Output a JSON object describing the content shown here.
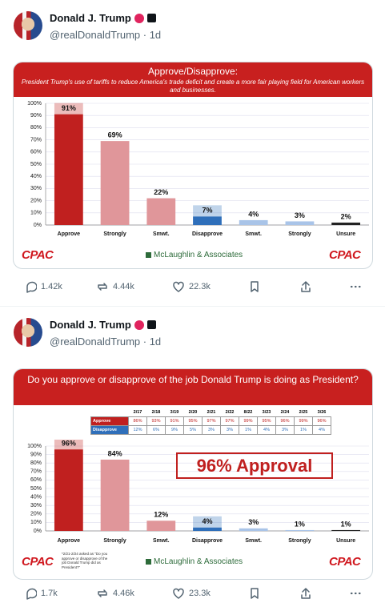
{
  "posts": [
    {
      "author": "Donald J. Trump",
      "handle_line": "@realDonaldTrump · 1d",
      "replies": "1.42k",
      "reposts": "4.44k",
      "likes": "22.3k",
      "chart_data": {
        "type": "bar",
        "title": "Approve/Disapprove:",
        "subtitle": "President Trump's use of tariffs to reduce America's trade deficit and create a more fair playing field for American workers and businesses.",
        "categories": [
          "Approve",
          "Strongly",
          "Smwt.",
          "Disapprove",
          "Smwt.",
          "Strongly",
          "Unsure"
        ],
        "values": [
          91,
          69,
          22,
          7,
          4,
          3,
          2
        ],
        "value_labels": [
          "91%",
          "69%",
          "22%",
          "7%",
          "4%",
          "3%",
          "2%"
        ],
        "colors": [
          "#c0201f",
          "#e0969a",
          "#e0969a",
          "#2f6fba",
          "#a9c4e8",
          "#a9c4e8",
          "#222222"
        ],
        "ylim": [
          0,
          100
        ],
        "yticks": [
          {
            "value": 0,
            "label": "0%"
          },
          {
            "value": 10,
            "label": "10%"
          },
          {
            "value": 20,
            "label": "20%"
          },
          {
            "value": 30,
            "label": "30%"
          },
          {
            "value": 40,
            "label": "40%"
          },
          {
            "value": 50,
            "label": "50%"
          },
          {
            "value": 60,
            "label": "60%"
          },
          {
            "value": 70,
            "label": "70%"
          },
          {
            "value": 80,
            "label": "80%"
          },
          {
            "value": 90,
            "label": "90%"
          },
          {
            "value": 100,
            "label": "100%"
          }
        ],
        "grid": true,
        "logo": "CPAC",
        "source": "McLaughlin & Associates"
      }
    },
    {
      "author": "Donald J. Trump",
      "handle_line": "@realDonaldTrump · 1d",
      "replies": "1.7k",
      "reposts": "4.46k",
      "likes": "23.3k",
      "chart_data": {
        "type": "bar",
        "title": "Do you approve or disapprove of the job Donald Trump is doing as President?",
        "table": {
          "header": [
            "2/17",
            "2/18",
            "3/19",
            "2/20",
            "2/21",
            "2/22",
            "8/22",
            "3/23",
            "2/24",
            "2/25",
            "3/26"
          ],
          "rows": [
            [
              "Approve",
              "86%",
              "93%",
              "91%",
              "95%",
              "97%",
              "97%",
              "99%",
              "95%",
              "96%",
              "99%",
              "96%"
            ],
            [
              "Disapprove",
              "12%",
              "6%",
              "9%",
              "5%",
              "3%",
              "3%",
              "1%",
              "4%",
              "3%",
              "1%",
              "4%"
            ]
          ]
        },
        "annotation": "96% Approval",
        "categories": [
          "Approve",
          "Strongly",
          "Smwt.",
          "Disapprove",
          "Smwt.",
          "Strongly",
          "Unsure"
        ],
        "values": [
          96,
          84,
          12,
          4,
          3,
          1,
          1
        ],
        "value_labels": [
          "96%",
          "84%",
          "12%",
          "4%",
          "3%",
          "1%",
          "1%"
        ],
        "colors": [
          "#c0201f",
          "#e0969a",
          "#e0969a",
          "#2f6fba",
          "#a9c4e8",
          "#a9c4e8",
          "#222222"
        ],
        "ylim": [
          0,
          100
        ],
        "yticks": [
          {
            "value": 0,
            "label": "0%"
          },
          {
            "value": 10,
            "label": "10%"
          },
          {
            "value": 20,
            "label": "20%"
          },
          {
            "value": 30,
            "label": "30%"
          },
          {
            "value": 40,
            "label": "40%"
          },
          {
            "value": 50,
            "label": "50%"
          },
          {
            "value": 60,
            "label": "60%"
          },
          {
            "value": 70,
            "label": "70%"
          },
          {
            "value": 80,
            "label": "80%"
          },
          {
            "value": 90,
            "label": "90%"
          },
          {
            "value": 100,
            "label": "100%"
          }
        ],
        "grid": true,
        "logo": "CPAC",
        "source": "McLaughlin & Associates",
        "note": "*2/21-2/24 asked as \"Do you approve or disapprove of the job Donald Trump did as President?\""
      }
    }
  ]
}
